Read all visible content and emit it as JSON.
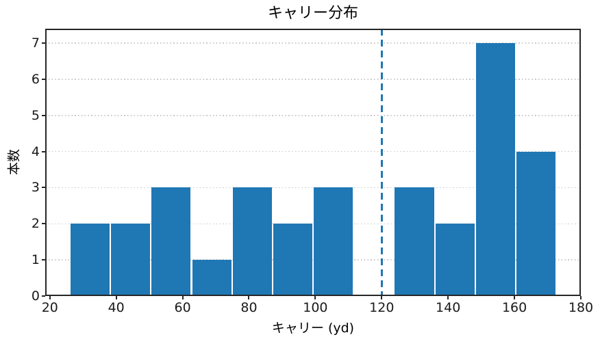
{
  "chart_data": {
    "type": "bar",
    "subtype": "histogram",
    "title": "キャリー分布",
    "xlabel": "キャリー (yd)",
    "ylabel": "本数",
    "bar_color": "#1f77b4",
    "bin_edges": [
      26.0,
      38.2,
      50.4,
      62.7,
      74.9,
      87.1,
      99.3,
      111.5,
      123.7,
      136.0,
      148.2,
      160.4,
      172.6
    ],
    "counts": [
      2,
      2,
      3,
      1,
      3,
      2,
      3,
      0,
      3,
      2,
      7,
      4
    ],
    "xticks": [
      20,
      40,
      60,
      80,
      100,
      120,
      140,
      160,
      180
    ],
    "yticks": [
      0,
      1,
      2,
      3,
      4,
      5,
      6,
      7
    ],
    "xlim": [
      18.6,
      180.0
    ],
    "ylim": [
      0,
      7.4
    ],
    "grid": {
      "axis": "y",
      "style": "dotted",
      "color": "#c9c9c9"
    },
    "vline": {
      "x": 120,
      "style": "dashed",
      "color": "#1f77b4"
    },
    "axis_color": "#262626"
  }
}
